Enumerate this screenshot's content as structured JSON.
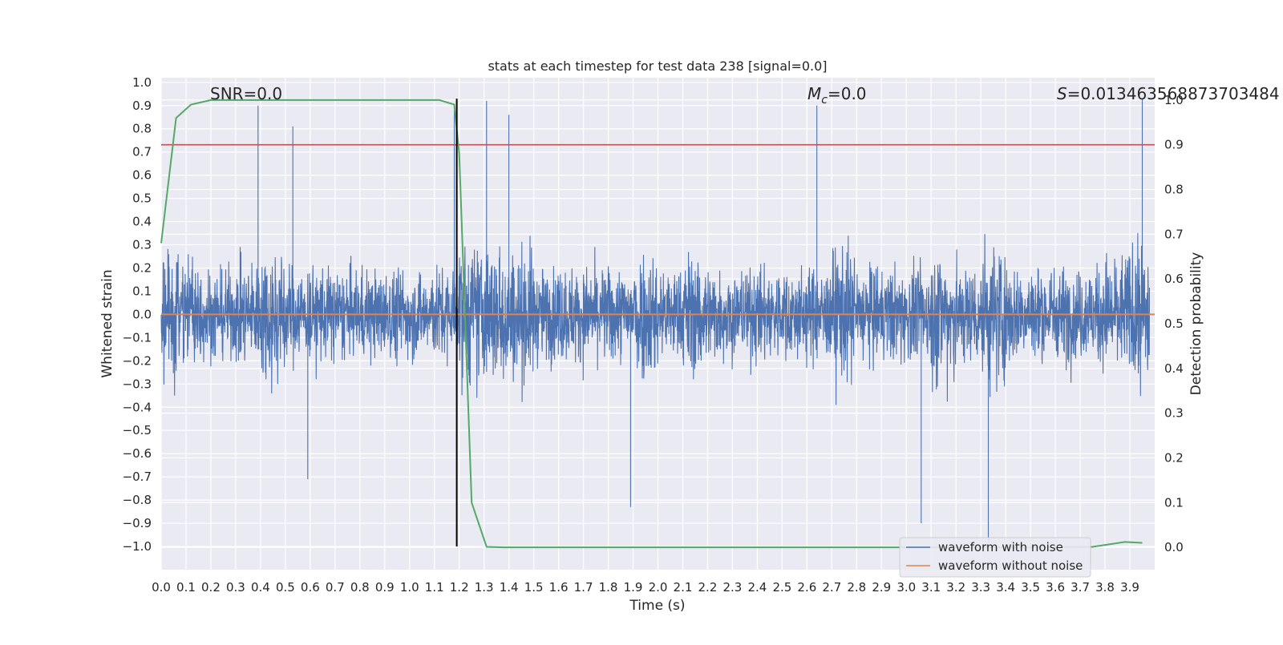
{
  "chart_data": {
    "type": "line",
    "title": "stats at each timestep for test data 238 [signal=0.0]",
    "xlabel": "Time (s)",
    "ylabel_left": "Whitened strain",
    "ylabel_right": "Detection probability",
    "xlim": [
      0.0,
      4.0
    ],
    "ylim_left": [
      -1.1,
      1.02
    ],
    "ylim_right": [
      -0.05,
      1.05
    ],
    "x_ticks": [
      "0.0",
      "0.1",
      "0.2",
      "0.3",
      "0.4",
      "0.5",
      "0.6",
      "0.7",
      "0.8",
      "0.9",
      "1.0",
      "1.1",
      "1.2",
      "1.3",
      "1.4",
      "1.5",
      "1.6",
      "1.7",
      "1.8",
      "1.9",
      "2.0",
      "2.1",
      "2.2",
      "2.3",
      "2.4",
      "2.5",
      "2.6",
      "2.7",
      "2.8",
      "2.9",
      "3.0",
      "3.1",
      "3.2",
      "3.3",
      "3.4",
      "3.5",
      "3.6",
      "3.7",
      "3.8",
      "3.9"
    ],
    "y_left_ticks": [
      "1.0",
      "0.9",
      "0.8",
      "0.7",
      "0.6",
      "0.5",
      "0.4",
      "0.3",
      "0.2",
      "0.1",
      "0.0",
      "−0.1",
      "−0.2",
      "−0.3",
      "−0.4",
      "−0.5",
      "−0.6",
      "−0.7",
      "−0.8",
      "−0.9",
      "−1.0"
    ],
    "y_right_ticks": [
      "1.0",
      "0.9",
      "0.8",
      "0.7",
      "0.6",
      "0.5",
      "0.4",
      "0.3",
      "0.2",
      "0.1",
      "0.0"
    ],
    "annotations": {
      "snr": "SNR=0.0",
      "mc_symbol": "M",
      "mc_sub": "c",
      "mc_value": "=0.0",
      "s_symbol": "S",
      "s_value": "=0.013463568873703484"
    },
    "grid": true,
    "legend_position": "lower-right",
    "colors": {
      "noise": "#4c72b0",
      "clean": "#dd8452",
      "probability": "#55a868",
      "threshold": "#c44e52",
      "marker": "#000000",
      "background": "#eaeaf2",
      "grid": "#ffffff"
    },
    "series": [
      {
        "name": "waveform with noise",
        "axis": "left",
        "sample_rate": 1000,
        "amplitude_envelope": [
          0.78,
          0.6,
          0.55,
          0.65,
          0.9,
          0.6,
          0.65,
          0.55,
          0.6,
          0.6,
          0.55,
          0.6,
          0.9,
          0.92,
          0.86,
          0.6,
          0.6,
          0.62,
          0.6,
          0.83,
          0.6,
          0.8,
          0.6,
          0.58,
          0.6,
          0.6,
          0.6,
          0.89,
          0.6,
          0.6,
          0.62,
          0.9,
          0.65,
          0.96,
          0.6,
          0.62,
          0.6,
          0.62,
          0.75,
          0.92
        ],
        "peaks": [
          {
            "x": 0.39,
            "y": 0.9
          },
          {
            "x": 0.53,
            "y": 0.81
          },
          {
            "x": 0.59,
            "y": -0.71
          },
          {
            "x": 1.18,
            "y": 0.88
          },
          {
            "x": 1.31,
            "y": 0.92
          },
          {
            "x": 1.4,
            "y": 0.86
          },
          {
            "x": 1.89,
            "y": -0.83
          },
          {
            "x": 2.64,
            "y": 0.9
          },
          {
            "x": 3.06,
            "y": -0.9
          },
          {
            "x": 3.33,
            "y": -0.98
          },
          {
            "x": 3.95,
            "y": 0.93
          }
        ]
      },
      {
        "name": "waveform without noise",
        "axis": "left",
        "x": [
          0.0,
          4.0
        ],
        "y": [
          0.0,
          0.0
        ]
      },
      {
        "name": "",
        "axis": "right",
        "x": [
          0.0,
          0.06,
          0.12,
          0.2,
          0.3,
          0.5,
          0.8,
          1.0,
          1.12,
          1.18,
          1.2,
          1.25,
          1.31,
          1.38,
          1.5,
          2.0,
          2.5,
          3.0,
          3.5,
          3.75,
          3.88,
          3.95
        ],
        "y": [
          0.68,
          0.96,
          0.99,
          1.0,
          1.0,
          1.0,
          1.0,
          1.0,
          1.0,
          0.99,
          0.88,
          0.1,
          0.001,
          0.0,
          0.0,
          0.0,
          0.0,
          0.0,
          0.0,
          0.001,
          0.012,
          0.01
        ]
      }
    ],
    "threshold": {
      "axis": "right",
      "y": 0.9
    },
    "marker_line": {
      "x": 1.19,
      "y_range": [
        -1.0,
        0.93
      ]
    }
  }
}
